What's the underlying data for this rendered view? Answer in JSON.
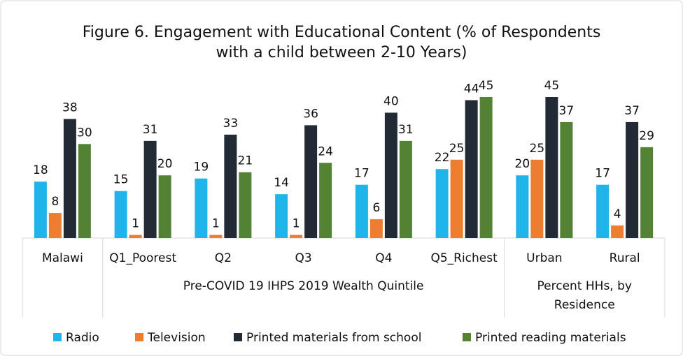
{
  "chart_data": {
    "type": "bar",
    "title": [
      "Figure 6. Engagement with Educational Content (% of Respondents",
      "with a child between 2-10 Years)"
    ],
    "categories": [
      "Malawi",
      "Q1_Poorest",
      "Q2",
      "Q3",
      "Q4",
      "Q5_Richest",
      "Urban",
      "Rural"
    ],
    "groups": [
      {
        "label": [
          "Pre-COVID 19 IHPS 2019 Wealth Quintile"
        ],
        "span": [
          1,
          5
        ]
      },
      {
        "label": [
          "Percent HHs, by",
          "Residence"
        ],
        "span": [
          6,
          7
        ]
      }
    ],
    "series": [
      {
        "name": "Radio",
        "color": "#1fb4ea",
        "values": [
          18,
          15,
          19,
          14,
          17,
          22,
          20,
          17
        ]
      },
      {
        "name": "Television",
        "color": "#ed7d31",
        "values": [
          8,
          1,
          1,
          1,
          6,
          25,
          25,
          4
        ]
      },
      {
        "name": "Printed materials from school",
        "color": "#222a35",
        "values": [
          38,
          31,
          33,
          36,
          40,
          44,
          45,
          37
        ]
      },
      {
        "name": "Printed reading materials",
        "color": "#548235",
        "values": [
          30,
          20,
          21,
          24,
          31,
          45,
          37,
          29
        ]
      }
    ],
    "legend": "bottom"
  }
}
